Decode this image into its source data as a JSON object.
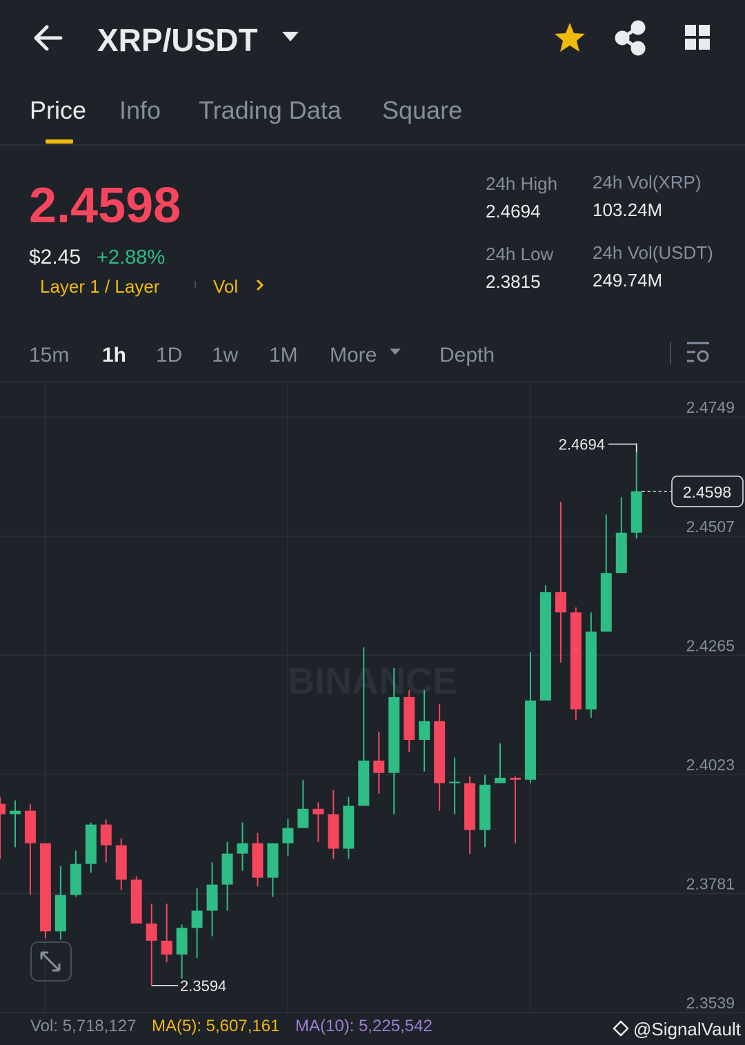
{
  "header": {
    "pair": "XRP/USDT"
  },
  "tabs": [
    "Price",
    "Info",
    "Trading Data",
    "Square"
  ],
  "ticker": {
    "price": "2.4598",
    "usd_price": "$2.45",
    "change": "+2.88%",
    "tags": [
      "Layer 1 / Layer",
      "Vol"
    ],
    "stats": [
      {
        "label": "24h High",
        "value": "2.4694"
      },
      {
        "label": "24h Vol(XRP)",
        "value": "103.24M"
      },
      {
        "label": "24h Low",
        "value": "2.3815"
      },
      {
        "label": "24h Vol(USDT)",
        "value": "249.74M"
      }
    ]
  },
  "intervals": [
    "15m",
    "1h",
    "1D",
    "1w",
    "1M",
    "More",
    "Depth"
  ],
  "chart_data": {
    "type": "candlestick",
    "up_color": "#2ebd85",
    "down_color": "#f6465d",
    "ylim": [
      2.3539,
      2.4818
    ],
    "yticks": [
      2.4749,
      2.4507,
      2.4265,
      2.4023,
      2.3781,
      2.3539
    ],
    "grid": true,
    "high_marker": 2.4694,
    "low_marker": 2.3594,
    "last_price": 2.4598,
    "open": [
      2.3963,
      2.3942,
      2.3949,
      2.3883,
      2.3704,
      2.3778,
      2.3841,
      2.3921,
      2.3879,
      2.3809,
      2.372,
      2.3685,
      2.3657,
      2.3711,
      2.3746,
      2.3799,
      2.3862,
      2.3883,
      2.3813,
      2.3883,
      2.3914,
      2.3953,
      2.3942,
      2.3872,
      2.3959,
      2.4051,
      2.4026,
      2.418,
      2.4093,
      2.4131,
      2.4005,
      2.4005,
      2.391,
      2.4005,
      2.4016,
      2.4012,
      2.4173,
      2.4393,
      2.4352,
      2.4155,
      2.4313,
      2.4432,
      2.4514
    ],
    "high": [
      2.3977,
      2.397,
      2.3963,
      2.3883,
      2.3837,
      2.3868,
      2.3925,
      2.3931,
      2.3893,
      2.3816,
      2.376,
      2.376,
      2.3718,
      2.3792,
      2.3844,
      2.3886,
      2.3925,
      2.3904,
      2.3883,
      2.3932,
      2.4012,
      2.3966,
      2.3991,
      2.3977,
      2.4281,
      2.411,
      2.4239,
      2.4194,
      2.4194,
      2.4166,
      2.4057,
      2.4019,
      2.4022,
      2.4086,
      2.4019,
      2.4271,
      2.4407,
      2.4577,
      2.4362,
      2.4352,
      2.4551,
      2.4586,
      2.4694
    ],
    "low": [
      2.3851,
      2.3875,
      2.3778,
      2.369,
      2.3687,
      2.3774,
      2.3823,
      2.3844,
      2.3788,
      2.372,
      2.3594,
      2.3641,
      2.3608,
      2.365,
      2.3694,
      2.3746,
      2.3827,
      2.3795,
      2.3774,
      2.3858,
      2.3914,
      2.3886,
      2.3851,
      2.3851,
      2.3959,
      2.3984,
      2.3942,
      2.4068,
      2.4029,
      2.3949,
      2.3942,
      2.3861,
      2.3875,
      2.4005,
      2.3883,
      2.4005,
      2.4173,
      2.425,
      2.4134,
      2.4138,
      2.4313,
      2.4432,
      2.4502
    ],
    "close": [
      2.3942,
      2.3949,
      2.3883,
      2.3704,
      2.3778,
      2.3841,
      2.3921,
      2.3879,
      2.3809,
      2.372,
      2.3685,
      2.3657,
      2.3711,
      2.3746,
      2.3799,
      2.3862,
      2.3883,
      2.3813,
      2.3883,
      2.3914,
      2.3953,
      2.3942,
      2.3872,
      2.3959,
      2.4051,
      2.4026,
      2.418,
      2.4093,
      2.4131,
      2.4005,
      2.4008,
      2.391,
      2.4002,
      2.4016,
      2.4012,
      2.4173,
      2.4393,
      2.4352,
      2.4155,
      2.4313,
      2.4432,
      2.4514,
      2.4598
    ]
  },
  "volume": {
    "vol": "Vol: 5,718,127",
    "ma5": "MA(5): 5,607,161",
    "ma10": "MA(10): 5,225,542"
  },
  "watermark": "BINANCE",
  "credit": "@SignalVault"
}
